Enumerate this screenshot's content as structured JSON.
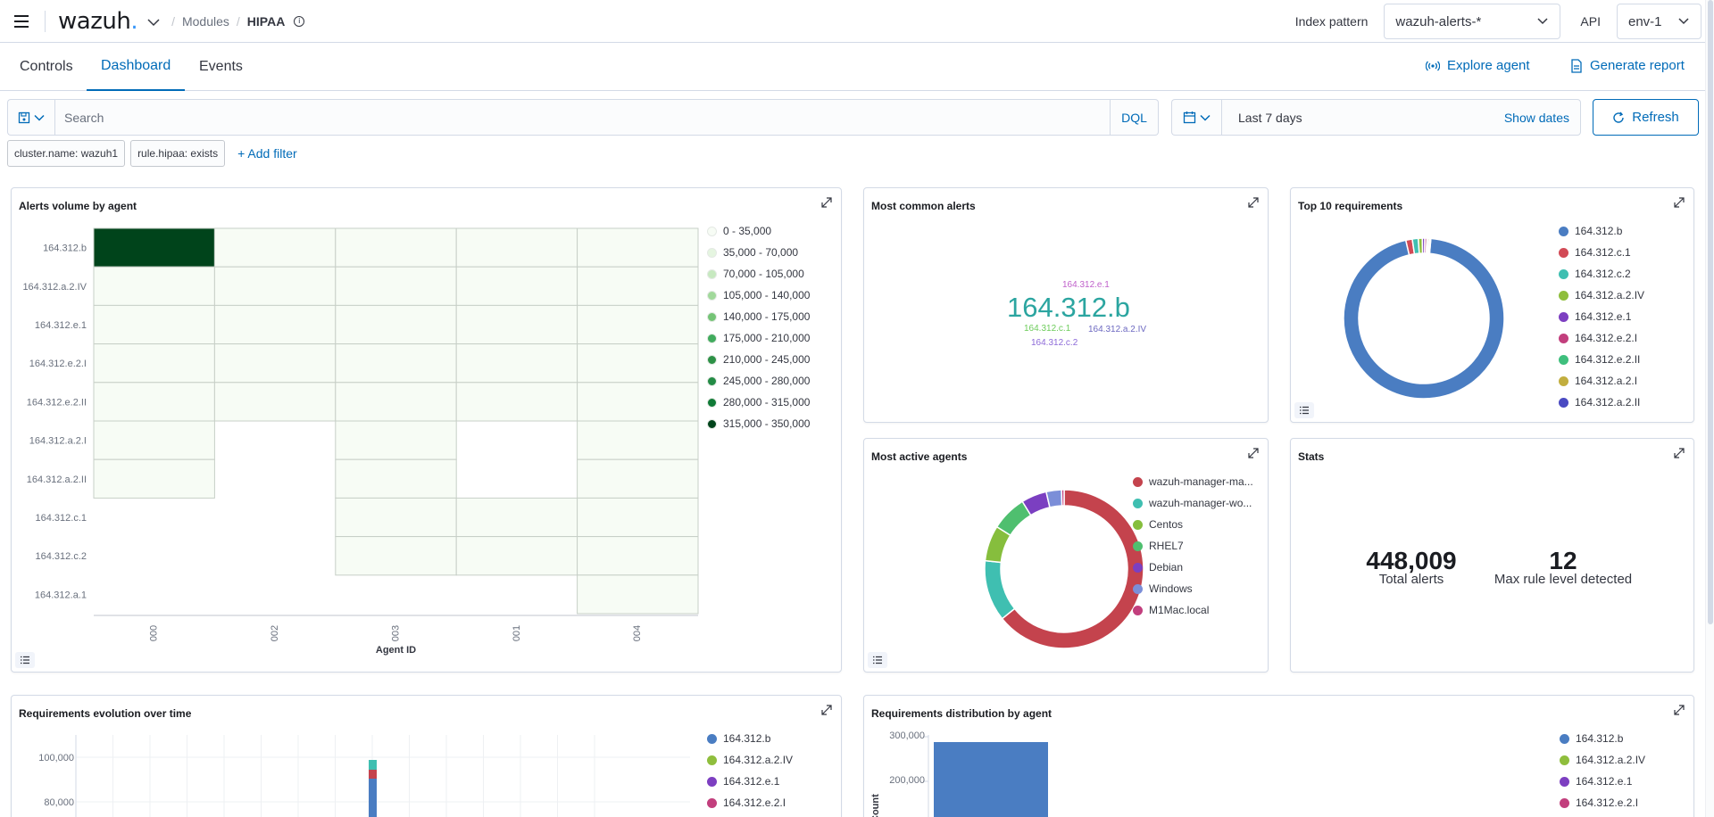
{
  "header": {
    "logo": "wazuh",
    "logo_dot": ".",
    "breadcrumb": [
      "Modules",
      "HIPAA"
    ],
    "index_label": "Index pattern",
    "index_value": "wazuh-alerts-*",
    "api_label": "API",
    "api_value": "env-1"
  },
  "tabs": [
    "Controls",
    "Dashboard",
    "Events"
  ],
  "active_tab": "Dashboard",
  "actions": {
    "explore": "Explore agent",
    "report": "Generate report"
  },
  "search": {
    "placeholder": "Search",
    "dql": "DQL"
  },
  "time": {
    "range": "Last 7 days",
    "show_dates": "Show dates",
    "refresh": "Refresh"
  },
  "filters": [
    "cluster.name: wazuh1",
    "rule.hipaa: exists"
  ],
  "add_filter": "+ Add filter",
  "panels": {
    "alerts_volume": {
      "title": "Alerts volume by agent",
      "xaxis": "Agent ID",
      "legend": [
        "0 - 35,000",
        "35,000 - 70,000",
        "70,000 - 105,000",
        "105,000 - 140,000",
        "140,000 - 175,000",
        "175,000 - 210,000",
        "210,000 - 245,000",
        "245,000 - 280,000",
        "280,000 - 315,000",
        "315,000 - 350,000"
      ],
      "legend_colors": [
        "#f7fcf5",
        "#e5f5e0",
        "#c7e9c0",
        "#a1d99b",
        "#74c476",
        "#41ab5d",
        "#2d9146",
        "#238b45",
        "#107a36",
        "#00441b"
      ]
    },
    "most_common": {
      "title": "Most common alerts",
      "words": [
        {
          "text": "164.312.e.1",
          "color": "#c061cb"
        },
        {
          "text": "164.312.b",
          "color": "#2ba5a0"
        },
        {
          "text": "164.312.c.1",
          "color": "#6dcc5b"
        },
        {
          "text": "164.312.a.2.IV",
          "color": "#6d69c1"
        },
        {
          "text": "164.312.c.2",
          "color": "#8d6ad8"
        }
      ]
    },
    "top10": {
      "title": "Top 10 requirements",
      "legend": [
        {
          "label": "164.312.b",
          "color": "#4a7dc2"
        },
        {
          "label": "164.312.c.1",
          "color": "#d24a56"
        },
        {
          "label": "164.312.c.2",
          "color": "#3fbfb1"
        },
        {
          "label": "164.312.a.2.IV",
          "color": "#8fbe3d"
        },
        {
          "label": "164.312.e.1",
          "color": "#7d3fc1"
        },
        {
          "label": "164.312.e.2.I",
          "color": "#c23f7d"
        },
        {
          "label": "164.312.e.2.II",
          "color": "#3fbf7d"
        },
        {
          "label": "164.312.a.2.I",
          "color": "#c2ae3f"
        },
        {
          "label": "164.312.a.2.II",
          "color": "#4a4ac2"
        }
      ]
    },
    "active_agents": {
      "title": "Most active agents",
      "legend": [
        {
          "label": "wazuh-manager-ma...",
          "color": "#c4434d"
        },
        {
          "label": "wazuh-manager-wo...",
          "color": "#3fbfb1"
        },
        {
          "label": "Centos",
          "color": "#86be3d"
        },
        {
          "label": "RHEL7",
          "color": "#4fbf6f"
        },
        {
          "label": "Debian",
          "color": "#7b3fc1"
        },
        {
          "label": "Windows",
          "color": "#7b8ed8"
        },
        {
          "label": "M1Mac.local",
          "color": "#c23f7d"
        }
      ]
    },
    "stats": {
      "title": "Stats",
      "total_alerts_value": "448,009",
      "total_alerts_label": "Total alerts",
      "max_level_value": "12",
      "max_level_label": "Max rule level detected"
    },
    "evolution": {
      "title": "Requirements evolution over time",
      "yticks": [
        "100,000",
        "80,000"
      ],
      "legend": [
        {
          "label": "164.312.b",
          "color": "#4a7dc2"
        },
        {
          "label": "164.312.a.2.IV",
          "color": "#8fbe3d"
        },
        {
          "label": "164.312.e.1",
          "color": "#7d3fc1"
        },
        {
          "label": "164.312.e.2.I",
          "color": "#c23f7d"
        }
      ]
    },
    "distribution": {
      "title": "Requirements distribution by agent",
      "yticks": [
        "300,000",
        "200,000"
      ],
      "ylabel": "Count",
      "legend": [
        {
          "label": "164.312.b",
          "color": "#4a7dc2"
        },
        {
          "label": "164.312.a.2.IV",
          "color": "#8fbe3d"
        },
        {
          "label": "164.312.e.1",
          "color": "#7d3fc1"
        },
        {
          "label": "164.312.e.2.I",
          "color": "#c23f7d"
        }
      ]
    }
  },
  "chart_data": [
    {
      "type": "heatmap",
      "title": "Alerts volume by agent",
      "xlabel": "Agent ID",
      "x": [
        "000",
        "002",
        "003",
        "001",
        "004"
      ],
      "y": [
        "164.312.b",
        "164.312.a.2.IV",
        "164.312.e.1",
        "164.312.e.2.I",
        "164.312.e.2.II",
        "164.312.a.2.I",
        "164.312.a.2.II",
        "164.312.c.1",
        "164.312.c.2",
        "164.312.a.1"
      ],
      "values": [
        [
          340000,
          5000,
          5000,
          5000,
          5000
        ],
        [
          5000,
          5000,
          5000,
          5000,
          5000
        ],
        [
          5000,
          5000,
          5000,
          5000,
          5000
        ],
        [
          5000,
          5000,
          5000,
          5000,
          5000
        ],
        [
          5000,
          5000,
          5000,
          5000,
          5000
        ],
        [
          5000,
          null,
          5000,
          null,
          5000
        ],
        [
          5000,
          null,
          5000,
          null,
          5000
        ],
        [
          null,
          null,
          5000,
          5000,
          5000
        ],
        [
          null,
          null,
          5000,
          5000,
          5000
        ],
        [
          null,
          null,
          null,
          null,
          5000
        ]
      ]
    },
    {
      "type": "pie",
      "title": "Top 10 requirements",
      "categories": [
        "164.312.b",
        "164.312.c.1",
        "164.312.c.2",
        "164.312.a.2.IV",
        "164.312.e.1",
        "164.312.e.2.I",
        "164.312.e.2.II",
        "164.312.a.2.I",
        "164.312.a.2.II"
      ],
      "values": [
        95,
        1.3,
        1.2,
        0.8,
        0.5,
        0.4,
        0.3,
        0.3,
        0.2
      ]
    },
    {
      "type": "pie",
      "title": "Most active agents",
      "categories": [
        "wazuh-manager-ma...",
        "wazuh-manager-wo...",
        "Centos",
        "RHEL7",
        "Debian",
        "Windows",
        "M1Mac.local"
      ],
      "values": [
        62,
        12,
        7,
        7,
        5,
        3,
        0.5
      ]
    }
  ]
}
